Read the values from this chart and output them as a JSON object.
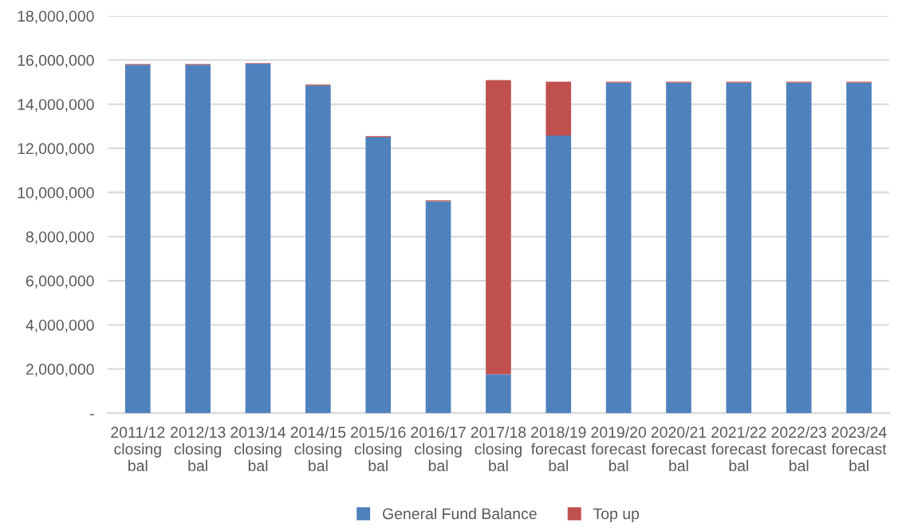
{
  "chart_data": {
    "type": "bar",
    "stacked": true,
    "categories": [
      "2011/12\nclosing\nbal",
      "2012/13\nclosing\nbal",
      "2013/14\nclosing\nbal",
      "2014/15\nclosing\nbal",
      "2015/16\nclosing\nbal",
      "2016/17\nclosing\nbal",
      "2017/18\nclosing\nbal",
      "2018/19\nforecast\nbal",
      "2019/20\nforecast\nbal",
      "2020/21\nforecast\nbal",
      "2021/22\nforecast\nbal",
      "2022/23\nforecast\nbal",
      "2023/24\nforecast\nbal"
    ],
    "series": [
      {
        "name": "General Fund Balance",
        "color": "#4f81bd",
        "values": [
          15790000,
          15790000,
          15830000,
          14850000,
          12510000,
          9600000,
          1760000,
          12580000,
          14970000,
          14970000,
          14970000,
          14970000,
          14970000
        ]
      },
      {
        "name": "Top up",
        "color": "#c0504d",
        "values": [
          30000,
          30000,
          30000,
          40000,
          40000,
          40000,
          13330000,
          2440000,
          50000,
          50000,
          50000,
          50000,
          50000
        ]
      }
    ],
    "ylim": [
      0,
      18000000
    ],
    "yticks": [
      {
        "value": 0,
        "label": "-"
      },
      {
        "value": 2000000,
        "label": "2,000,000"
      },
      {
        "value": 4000000,
        "label": "4,000,000"
      },
      {
        "value": 6000000,
        "label": "6,000,000"
      },
      {
        "value": 8000000,
        "label": "8,000,000"
      },
      {
        "value": 10000000,
        "label": "10,000,000"
      },
      {
        "value": 12000000,
        "label": "12,000,000"
      },
      {
        "value": 14000000,
        "label": "14,000,000"
      },
      {
        "value": 16000000,
        "label": "16,000,000"
      },
      {
        "value": 18000000,
        "label": "18,000,000"
      }
    ],
    "grid": "y",
    "legend": "bottom"
  }
}
